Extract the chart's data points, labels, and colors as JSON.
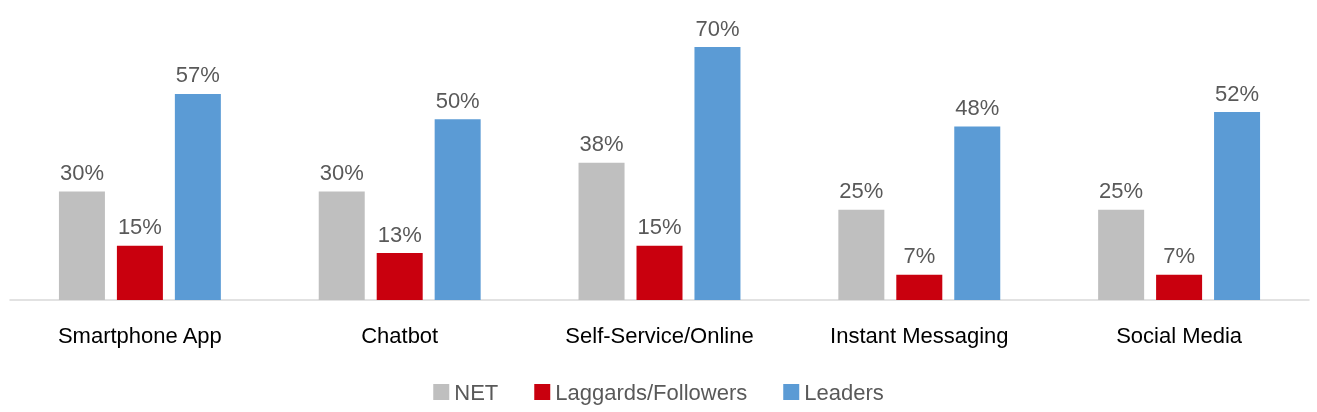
{
  "chart_data": {
    "type": "bar",
    "categories": [
      "Smartphone App",
      "Chatbot",
      "Self-Service/Online",
      "Instant Messaging",
      "Social Media"
    ],
    "series": [
      {
        "name": "NET",
        "color": "#bfbfbf",
        "values": [
          30,
          30,
          38,
          25,
          25
        ],
        "value_labels": [
          "30%",
          "30%",
          "38%",
          "25%",
          "25%"
        ]
      },
      {
        "name": "Laggards/Followers",
        "color": "#c9000e",
        "values": [
          15,
          13,
          15,
          7,
          7
        ],
        "value_labels": [
          "15%",
          "13%",
          "15%",
          "7%",
          "7%"
        ]
      },
      {
        "name": "Leaders",
        "color": "#5b9bd5",
        "values": [
          57,
          50,
          70,
          48,
          52
        ],
        "value_labels": [
          "57%",
          "50%",
          "70%",
          "48%",
          "52%"
        ]
      }
    ],
    "legend": "bottom"
  }
}
